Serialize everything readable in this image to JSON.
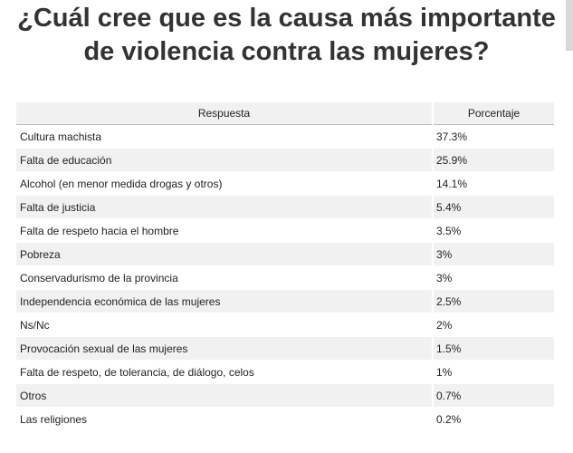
{
  "title": {
    "line1": "¿Cuál cree que es la causa más importante",
    "line2": "de violencia contra las mujeres?"
  },
  "colors": {
    "title_text": "#333333",
    "header_bg": "#f1f1f1",
    "stripe_bg": "#f1f1f1",
    "header_rule": "#b9b9b9"
  },
  "chart_data": {
    "type": "table",
    "columns": [
      "Respuesta",
      "Porcentaje"
    ],
    "rows": [
      {
        "label": "Cultura machista",
        "value": "37.3%"
      },
      {
        "label": "Falta de educación",
        "value": "25.9%"
      },
      {
        "label": "Alcohol (en menor medida drogas y otros)",
        "value": "14.1%"
      },
      {
        "label": "Falta de justicia",
        "value": "5.4%"
      },
      {
        "label": "Falta de respeto hacia el hombre",
        "value": "3.5%"
      },
      {
        "label": "Pobreza",
        "value": "3%"
      },
      {
        "label": "Conservadurismo de la provincia",
        "value": "3%"
      },
      {
        "label": "Independencia económica de las mujeres",
        "value": "2.5%"
      },
      {
        "label": "Ns/Nc",
        "value": "2%"
      },
      {
        "label": "Provocación sexual de las mujeres",
        "value": "1.5%"
      },
      {
        "label": "Falta de respeto, de tolerancia, de diálogo, celos",
        "value": "1%"
      },
      {
        "label": "Otros",
        "value": "0.7%"
      },
      {
        "label": "Las religiones",
        "value": "0.2%"
      }
    ]
  }
}
